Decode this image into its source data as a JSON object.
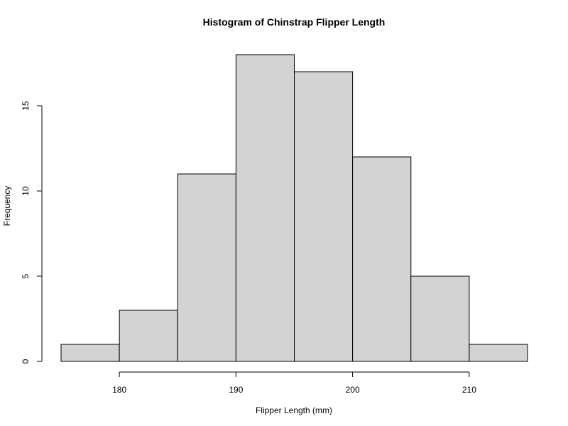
{
  "chart_data": {
    "type": "bar",
    "title": "Histogram of Chinstrap Flipper Length",
    "xlabel": "Flipper Length (mm)",
    "ylabel": "Frequency",
    "bin_edges": [
      175,
      180,
      185,
      190,
      195,
      200,
      205,
      210,
      215
    ],
    "values": [
      1,
      3,
      11,
      18,
      17,
      12,
      5,
      1
    ],
    "xlim": [
      175,
      215
    ],
    "ylim": [
      0,
      18
    ],
    "x_ticks": [
      180,
      190,
      200,
      210
    ],
    "y_ticks": [
      0,
      5,
      10,
      15
    ],
    "bar_color": "#d3d3d3",
    "grid": false
  }
}
